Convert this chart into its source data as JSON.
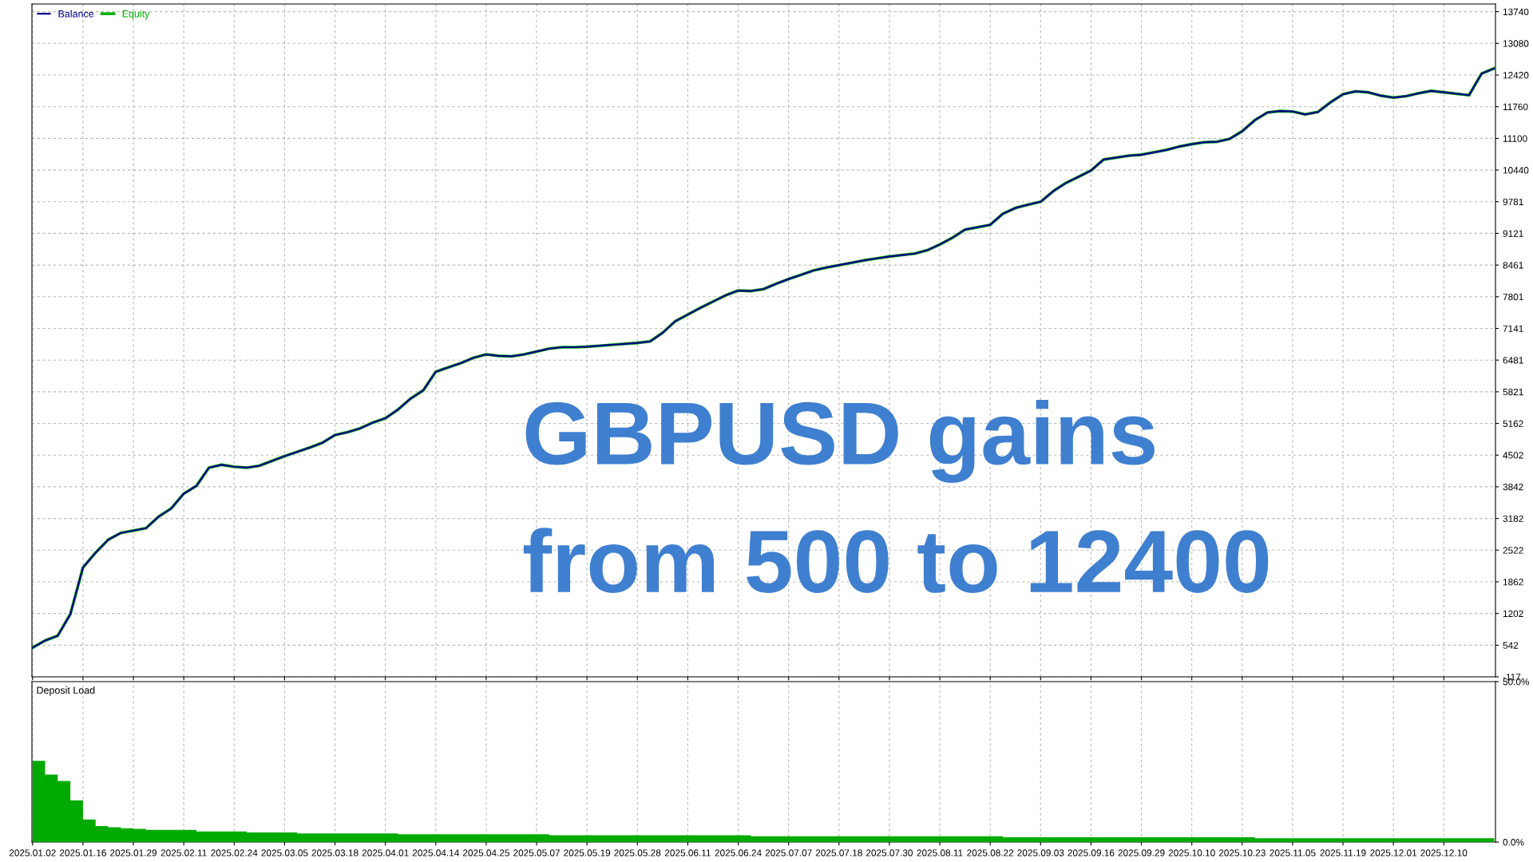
{
  "chart_data": [
    {
      "type": "line",
      "legend": "top left",
      "grid": true,
      "tick_labels": "y",
      "line_style": "solid",
      "categories": [
        "2025.01.02",
        null,
        null,
        null,
        "2025.01.16",
        null,
        null,
        null,
        "2025.01.29",
        null,
        null,
        null,
        "2025.02.11",
        null,
        null,
        null,
        "2025.02.24",
        null,
        null,
        null,
        "2025.03.05",
        null,
        null,
        null,
        "2025.03.18",
        null,
        null,
        null,
        "2025.04.01",
        null,
        null,
        null,
        "2025.04.14",
        null,
        null,
        null,
        "2025.04.25",
        null,
        null,
        null,
        "2025.05.07",
        null,
        null,
        null,
        "2025.05.19",
        null,
        null,
        null,
        "2025.05.28",
        null,
        null,
        null,
        "2025.06.11",
        null,
        null,
        null,
        "2025.06.24",
        null,
        null,
        null,
        "2025.07.07",
        null,
        null,
        null,
        "2025.07.18",
        null,
        null,
        null,
        "2025.07.30",
        null,
        null,
        null,
        "2025.08.11",
        null,
        null,
        null,
        "2025.08.22",
        null,
        null,
        null,
        "2025.09.03",
        null,
        null,
        null,
        "2025.09.16",
        null,
        null,
        null,
        "2025.09.29",
        null,
        null,
        null,
        "2025.10.10",
        null,
        null,
        null,
        "2025.10.23",
        null,
        null,
        null,
        "2025.11.05",
        null,
        null,
        null,
        "2025.11.19",
        null,
        null,
        null,
        "2025.12.01",
        null,
        null,
        null,
        "2025.12.10",
        null,
        null,
        null,
        null
      ],
      "ylim": [
        -117,
        13900
      ],
      "yticks": [
        -117,
        542,
        1202,
        1862,
        2522,
        3182,
        3842,
        4502,
        5162,
        5821,
        6481,
        7141,
        7801,
        8461,
        9121,
        9781,
        10440,
        11100,
        11760,
        12420,
        13080,
        13740
      ],
      "series": [
        {
          "name": "Equity",
          "color": "#00b000",
          "values": [
            490,
            640,
            740,
            1190,
            2160,
            2470,
            2740,
            2880,
            2930,
            2980,
            3220,
            3390,
            3700,
            3860,
            4240,
            4300,
            4260,
            4240,
            4280,
            4380,
            4480,
            4570,
            4660,
            4760,
            4920,
            4980,
            5060,
            5180,
            5270,
            5450,
            5680,
            5850,
            6240,
            6330,
            6420,
            6530,
            6600,
            6570,
            6560,
            6600,
            6660,
            6720,
            6750,
            6750,
            6760,
            6780,
            6800,
            6820,
            6840,
            6870,
            7050,
            7290,
            7430,
            7570,
            7700,
            7830,
            7930,
            7920,
            7960,
            8070,
            8170,
            8260,
            8350,
            8410,
            8460,
            8510,
            8560,
            8600,
            8640,
            8670,
            8700,
            8770,
            8890,
            9030,
            9200,
            9250,
            9300,
            9530,
            9650,
            9720,
            9780,
            10000,
            10170,
            10300,
            10430,
            10660,
            10700,
            10740,
            10760,
            10810,
            10860,
            10930,
            10980,
            11020,
            11030,
            11090,
            11250,
            11480,
            11640,
            11670,
            11660,
            11600,
            11650,
            11850,
            12020,
            12080,
            12060,
            11990,
            11950,
            11980,
            12040,
            12090,
            12060,
            12030,
            12000,
            12450,
            12560
          ]
        },
        {
          "name": "Balance",
          "color": "#00008b",
          "values": [
            490,
            640,
            740,
            1190,
            2160,
            2470,
            2740,
            2880,
            2930,
            2980,
            3220,
            3390,
            3700,
            3860,
            4240,
            4300,
            4260,
            4240,
            4280,
            4380,
            4480,
            4570,
            4660,
            4760,
            4920,
            4980,
            5060,
            5180,
            5270,
            5450,
            5680,
            5850,
            6240,
            6330,
            6420,
            6530,
            6600,
            6570,
            6560,
            6600,
            6660,
            6720,
            6750,
            6750,
            6760,
            6780,
            6800,
            6820,
            6840,
            6870,
            7050,
            7290,
            7430,
            7570,
            7700,
            7830,
            7930,
            7920,
            7960,
            8070,
            8170,
            8260,
            8350,
            8410,
            8460,
            8510,
            8560,
            8600,
            8640,
            8670,
            8700,
            8770,
            8890,
            9030,
            9200,
            9250,
            9300,
            9530,
            9650,
            9720,
            9780,
            10000,
            10170,
            10300,
            10430,
            10660,
            10700,
            10740,
            10760,
            10810,
            10860,
            10930,
            10980,
            11020,
            11030,
            11090,
            11250,
            11480,
            11640,
            11670,
            11660,
            11600,
            11650,
            11850,
            12020,
            12080,
            12060,
            11990,
            11950,
            11980,
            12040,
            12090,
            12060,
            12030,
            12000,
            12450,
            12560
          ]
        }
      ],
      "annotations": [
        "GBPUSD gains",
        "from 500 to 12400"
      ]
    },
    {
      "type": "area",
      "title": "Deposit Load",
      "grid": "x",
      "categories": [
        "2025.01.02",
        null,
        null,
        null,
        "2025.01.16",
        null,
        null,
        null,
        "2025.01.29",
        null,
        null,
        null,
        "2025.02.11",
        null,
        null,
        null,
        "2025.02.24",
        null,
        null,
        null,
        "2025.03.05",
        null,
        null,
        null,
        "2025.03.18",
        null,
        null,
        null,
        "2025.04.01",
        null,
        null,
        null,
        "2025.04.14",
        null,
        null,
        null,
        "2025.04.25",
        null,
        null,
        null,
        "2025.05.07",
        null,
        null,
        null,
        "2025.05.19",
        null,
        null,
        null,
        "2025.05.28",
        null,
        null,
        null,
        "2025.06.11",
        null,
        null,
        null,
        "2025.06.24",
        null,
        null,
        null,
        "2025.07.07",
        null,
        null,
        null,
        "2025.07.18",
        null,
        null,
        null,
        "2025.07.30",
        null,
        null,
        null,
        "2025.08.11",
        null,
        null,
        null,
        "2025.08.22",
        null,
        null,
        null,
        "2025.09.03",
        null,
        null,
        null,
        "2025.09.16",
        null,
        null,
        null,
        "2025.09.29",
        null,
        null,
        null,
        "2025.10.10",
        null,
        null,
        null,
        "2025.10.23",
        null,
        null,
        null,
        "2025.11.05",
        null,
        null,
        null,
        "2025.11.19",
        null,
        null,
        null,
        "2025.12.01",
        null,
        null,
        null,
        "2025.12.10",
        null,
        null,
        null,
        null
      ],
      "ylim": [
        0,
        50
      ],
      "yticks": [
        {
          "value": 0,
          "label": "0.0%"
        },
        {
          "value": 50,
          "label": "50.0%"
        }
      ],
      "series": [
        {
          "color": "#00aa00",
          "values": [
            25.3,
            21,
            19,
            13,
            7,
            5,
            4.6,
            4.3,
            4.1,
            3.8,
            3.8,
            3.8,
            3.8,
            3.3,
            3.3,
            3.3,
            3.3,
            3.0,
            3.0,
            3.0,
            3.0,
            2.7,
            2.7,
            2.7,
            2.7,
            2.7,
            2.7,
            2.7,
            2.7,
            2.4,
            2.4,
            2.4,
            2.4,
            2.4,
            2.4,
            2.4,
            2.4,
            2.4,
            2.4,
            2.4,
            2.4,
            2.1,
            2.1,
            2.1,
            2.1,
            2.1,
            2.1,
            2.1,
            2.1,
            2.1,
            2.1,
            2.1,
            2.1,
            2.1,
            2.1,
            2.1,
            2.1,
            1.8,
            1.8,
            1.8,
            1.8,
            1.8,
            1.8,
            1.8,
            1.8,
            1.8,
            1.8,
            1.8,
            1.8,
            1.8,
            1.8,
            1.8,
            1.8,
            1.8,
            1.8,
            1.8,
            1.8,
            1.5,
            1.5,
            1.5,
            1.5,
            1.5,
            1.5,
            1.5,
            1.5,
            1.5,
            1.5,
            1.5,
            1.5,
            1.5,
            1.5,
            1.5,
            1.5,
            1.5,
            1.5,
            1.5,
            1.5,
            1.2,
            1.2,
            1.2,
            1.2,
            1.2,
            1.2,
            1.2,
            1.2,
            1.2,
            1.2,
            1.2,
            1.2,
            1.2,
            1.2,
            1.2,
            1.2,
            1.2,
            1.2,
            1.2,
            1.2
          ]
        }
      ]
    }
  ]
}
